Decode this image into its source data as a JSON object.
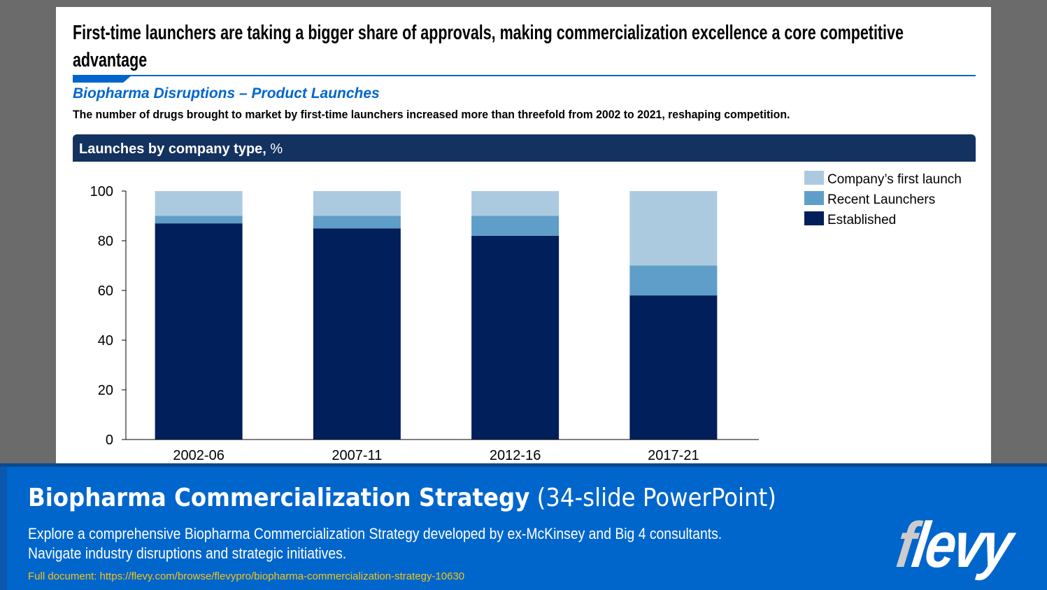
{
  "slide": {
    "title": "First-time launchers are taking a bigger share of approvals, making commercialization excellence a core competitive advantage",
    "subtitle": "Biopharma Disruptions – Product Launches",
    "description": "The number of drugs brought to market by first-time launchers increased more than threefold from 2002 to 2021, reshaping competition.",
    "chart_header": "Launches by company type,",
    "chart_header_unit": " %"
  },
  "chart_data": {
    "type": "bar",
    "stacked": true,
    "title": "Launches by company type, %",
    "categories": [
      "2002-06",
      "2007-11",
      "2012-16",
      "2017-21"
    ],
    "series": [
      {
        "name": "Established",
        "values": [
          87,
          85,
          82,
          58
        ],
        "color": "#001f5b"
      },
      {
        "name": "Recent Launchers",
        "values": [
          3,
          5,
          8,
          12
        ],
        "color": "#5f9ec9"
      },
      {
        "name": "Company’s first launch",
        "values": [
          10,
          10,
          10,
          30
        ],
        "color": "#abcae0"
      }
    ],
    "ylim": [
      0,
      100
    ],
    "yticks": [
      "0",
      "20",
      "40",
      "60",
      "80",
      "100"
    ],
    "grid": false,
    "legend": "top-right",
    "legend_order": [
      "Company’s first launch",
      "Recent Launchers",
      "Established"
    ]
  },
  "banner": {
    "title_bold": "Biopharma Commercialization Strategy",
    "title_light": " (34-slide PowerPoint)",
    "desc_line1": "Explore a comprehensive Biopharma Commercialization Strategy developed by ex-McKinsey and Big 4 consultants.",
    "desc_line2": "Navigate industry disruptions and strategic initiatives.",
    "link": "Full document: https://flevy.com/browse/flevypro/biopharma-commercialization-strategy-10630",
    "logo": "flevy"
  }
}
